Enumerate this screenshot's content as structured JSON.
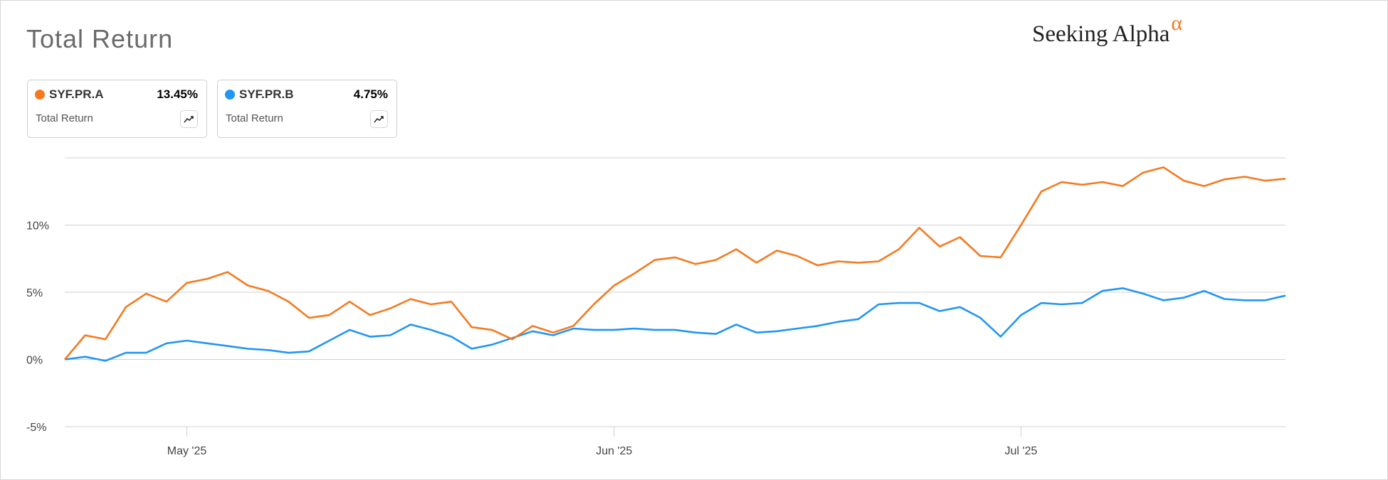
{
  "header": {
    "title": "Total Return",
    "brand_text": "Seeking Alpha",
    "brand_symbol": "α"
  },
  "cards": [
    {
      "ticker": "SYF.PR.A",
      "value": "13.45%",
      "metric": "Total Return",
      "color": "#f47a20",
      "icon": "trend-line-icon"
    },
    {
      "ticker": "SYF.PR.B",
      "value": "4.75%",
      "metric": "Total Return",
      "color": "#2196f3",
      "icon": "trend-line-icon"
    }
  ],
  "chart_data": {
    "type": "line",
    "title": "Total Return",
    "xlabel": "",
    "ylabel": "",
    "ylim": [
      -5,
      15
    ],
    "y_ticks": [
      -5,
      0,
      5,
      10
    ],
    "y_tick_labels": [
      "-5%",
      "0%",
      "5%",
      "10%"
    ],
    "x_tick_labels": [
      "May '25",
      "Jun '25",
      "Jul '25"
    ],
    "x_tick_indices": [
      6,
      27,
      47
    ],
    "grid": true,
    "legend": "top-left",
    "series": [
      {
        "name": "SYF.PR.A",
        "color": "#f47a20",
        "values": [
          0.0,
          1.8,
          1.5,
          3.9,
          4.9,
          4.3,
          5.7,
          6.0,
          6.5,
          5.5,
          5.1,
          4.3,
          3.1,
          3.3,
          4.3,
          3.3,
          3.8,
          4.5,
          4.1,
          4.3,
          2.4,
          2.2,
          1.5,
          2.5,
          2.0,
          2.5,
          4.1,
          5.5,
          6.4,
          7.4,
          7.6,
          7.1,
          7.4,
          8.2,
          7.2,
          8.1,
          7.7,
          7.0,
          7.3,
          7.2,
          7.3,
          8.2,
          9.8,
          8.4,
          9.1,
          7.7,
          7.6,
          10.0,
          12.5,
          13.2,
          13.0,
          13.2,
          12.9,
          13.9,
          14.3,
          13.3,
          12.9,
          13.4,
          13.6,
          13.3,
          13.45
        ]
      },
      {
        "name": "SYF.PR.B",
        "color": "#2196f3",
        "values": [
          0.0,
          0.2,
          -0.1,
          0.5,
          0.5,
          1.2,
          1.4,
          1.2,
          1.0,
          0.8,
          0.7,
          0.5,
          0.6,
          1.4,
          2.2,
          1.7,
          1.8,
          2.6,
          2.2,
          1.7,
          0.8,
          1.1,
          1.6,
          2.1,
          1.8,
          2.3,
          2.2,
          2.2,
          2.3,
          2.2,
          2.2,
          2.0,
          1.9,
          2.6,
          2.0,
          2.1,
          2.3,
          2.5,
          2.8,
          3.0,
          4.1,
          4.2,
          4.2,
          3.6,
          3.9,
          3.1,
          1.7,
          3.3,
          4.2,
          4.1,
          4.2,
          5.1,
          5.3,
          4.9,
          4.4,
          4.6,
          5.1,
          4.5,
          4.4,
          4.4,
          4.75
        ]
      }
    ]
  }
}
